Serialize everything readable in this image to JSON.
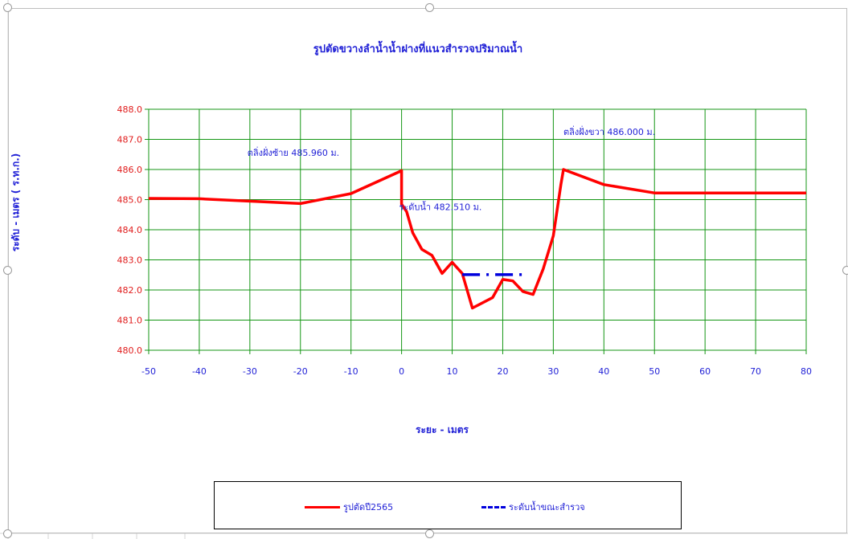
{
  "chart_data": {
    "type": "line",
    "title": "รูปตัดขวางลำน้ำน้ำฝางที่แนวสำรวจปริมาณน้ำ",
    "xlabel": "ระยะ - เมตร",
    "ylabel": "ระดับ - เมตร ( ร.ท.ก.)",
    "xlim": [
      -50,
      80
    ],
    "ylim": [
      480.0,
      488.0
    ],
    "x_ticks": [
      "-50",
      "-40",
      "-30",
      "-20",
      "-10",
      "0",
      "10",
      "20",
      "30",
      "40",
      "50",
      "60",
      "70",
      "80"
    ],
    "y_ticks": [
      "480.0",
      "481.0",
      "482.0",
      "483.0",
      "484.0",
      "485.0",
      "486.0",
      "487.0",
      "488.0"
    ],
    "grid": true,
    "legend_position": "bottom",
    "series": [
      {
        "name": "รูปตัดปี2565",
        "color": "#ff0000",
        "style": "solid",
        "points": [
          [
            -50,
            485.04
          ],
          [
            -40,
            485.03
          ],
          [
            -20,
            484.87
          ],
          [
            -10,
            485.2
          ],
          [
            0,
            485.96
          ],
          [
            0,
            484.85
          ],
          [
            1,
            484.6
          ],
          [
            2.2,
            483.9
          ],
          [
            4,
            483.35
          ],
          [
            6,
            483.15
          ],
          [
            8,
            482.55
          ],
          [
            10,
            482.92
          ],
          [
            12,
            482.55
          ],
          [
            14,
            481.4
          ],
          [
            18,
            481.75
          ],
          [
            20,
            482.35
          ],
          [
            22,
            482.3
          ],
          [
            24,
            481.95
          ],
          [
            26,
            481.85
          ],
          [
            28,
            482.7
          ],
          [
            30,
            483.8
          ],
          [
            31.5,
            485.5
          ],
          [
            32,
            486.0
          ],
          [
            40,
            485.5
          ],
          [
            50,
            485.22
          ],
          [
            80,
            485.22
          ]
        ]
      },
      {
        "name": "ระดับน้ำขณะสำรวจ",
        "color": "#0000dd",
        "style": "dash-dot",
        "points": [
          [
            12,
            482.51
          ],
          [
            25,
            482.51
          ]
        ]
      }
    ],
    "annotations": [
      {
        "text": "ตลิ่งฝั่งซ้าย 485.960 ม.",
        "x": -30.5,
        "y": 486.45
      },
      {
        "text": "ตลิ่งฝั่งขวา 486.000 ม.",
        "x": 32,
        "y": 487.15
      },
      {
        "text": "ระดับน้ำ 482.510 ม.",
        "x": -0.5,
        "y": 484.65
      }
    ]
  }
}
